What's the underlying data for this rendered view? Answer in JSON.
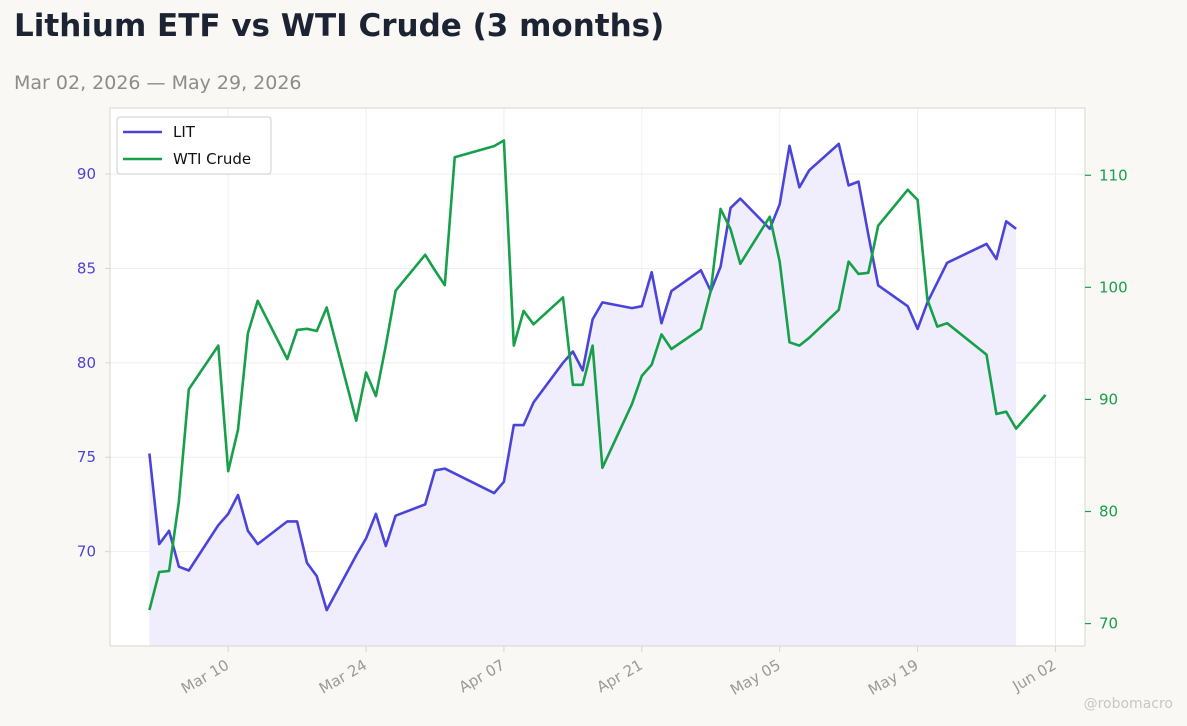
{
  "header": {
    "title": "Lithium ETF vs WTI Crude (3 months)",
    "subtitle": "Mar 02, 2026 — May 29, 2026"
  },
  "watermark": "@robomacro",
  "colors": {
    "lit": "#4b44d8",
    "lit_fill": "#f0eefc",
    "wti": "#17a04a",
    "axis": "#d8d6d0",
    "grid": "#eeeeee",
    "tick_label": "#9a9a9a"
  },
  "chart_data": {
    "type": "line",
    "legend": "top-left",
    "grid": true,
    "x_range": [
      "2026-02-26",
      "2026-06-05"
    ],
    "x_ticks": [
      {
        "date": "2026-03-10",
        "label": "Mar 10"
      },
      {
        "date": "2026-03-24",
        "label": "Mar 24"
      },
      {
        "date": "2026-04-07",
        "label": "Apr 07"
      },
      {
        "date": "2026-04-21",
        "label": "Apr 21"
      },
      {
        "date": "2026-05-05",
        "label": "May 05"
      },
      {
        "date": "2026-05-19",
        "label": "May 19"
      },
      {
        "date": "2026-06-02",
        "label": "Jun 02"
      }
    ],
    "y_left": {
      "range": [
        65,
        93.5
      ],
      "ticks": [
        70,
        75,
        80,
        85,
        90
      ]
    },
    "y_right": {
      "range": [
        68,
        116
      ],
      "ticks": [
        70,
        80,
        90,
        100,
        110
      ]
    },
    "series": [
      {
        "name": "LIT",
        "axis": "left",
        "fill": true,
        "points": [
          [
            "2026-03-02",
            75.2
          ],
          [
            "2026-03-03",
            70.4
          ],
          [
            "2026-03-04",
            71.1
          ],
          [
            "2026-03-05",
            69.2
          ],
          [
            "2026-03-06",
            69.0
          ],
          [
            "2026-03-09",
            71.4
          ],
          [
            "2026-03-10",
            72.0
          ],
          [
            "2026-03-11",
            73.0
          ],
          [
            "2026-03-12",
            71.1
          ],
          [
            "2026-03-13",
            70.4
          ],
          [
            "2026-03-16",
            71.6
          ],
          [
            "2026-03-17",
            71.6
          ],
          [
            "2026-03-18",
            69.4
          ],
          [
            "2026-03-19",
            68.7
          ],
          [
            "2026-03-20",
            66.9
          ],
          [
            "2026-03-23",
            69.8
          ],
          [
            "2026-03-24",
            70.7
          ],
          [
            "2026-03-25",
            72.0
          ],
          [
            "2026-03-26",
            70.3
          ],
          [
            "2026-03-27",
            71.9
          ],
          [
            "2026-03-30",
            72.5
          ],
          [
            "2026-03-31",
            74.3
          ],
          [
            "2026-04-01",
            74.4
          ],
          [
            "2026-04-06",
            73.1
          ],
          [
            "2026-04-07",
            73.7
          ],
          [
            "2026-04-08",
            76.7
          ],
          [
            "2026-04-09",
            76.7
          ],
          [
            "2026-04-10",
            77.9
          ],
          [
            "2026-04-13",
            80.0
          ],
          [
            "2026-04-14",
            80.6
          ],
          [
            "2026-04-15",
            79.6
          ],
          [
            "2026-04-16",
            82.3
          ],
          [
            "2026-04-17",
            83.2
          ],
          [
            "2026-04-20",
            82.9
          ],
          [
            "2026-04-21",
            83.0
          ],
          [
            "2026-04-22",
            84.8
          ],
          [
            "2026-04-23",
            82.1
          ],
          [
            "2026-04-24",
            83.8
          ],
          [
            "2026-04-27",
            84.9
          ],
          [
            "2026-04-28",
            83.8
          ],
          [
            "2026-04-29",
            85.1
          ],
          [
            "2026-04-30",
            88.2
          ],
          [
            "2026-05-01",
            88.7
          ],
          [
            "2026-05-04",
            87.1
          ],
          [
            "2026-05-05",
            88.4
          ],
          [
            "2026-05-06",
            91.5
          ],
          [
            "2026-05-07",
            89.3
          ],
          [
            "2026-05-08",
            90.2
          ],
          [
            "2026-05-11",
            91.6
          ],
          [
            "2026-05-12",
            89.4
          ],
          [
            "2026-05-13",
            89.6
          ],
          [
            "2026-05-14",
            86.8
          ],
          [
            "2026-05-15",
            84.1
          ],
          [
            "2026-05-18",
            83.0
          ],
          [
            "2026-05-19",
            81.8
          ],
          [
            "2026-05-20",
            83.2
          ],
          [
            "2026-05-22",
            85.3
          ],
          [
            "2026-05-26",
            86.3
          ],
          [
            "2026-05-27",
            85.5
          ],
          [
            "2026-05-28",
            87.5
          ],
          [
            "2026-05-29",
            87.1
          ]
        ]
      },
      {
        "name": "WTI Crude",
        "axis": "right",
        "fill": false,
        "points": [
          [
            "2026-03-02",
            71.2
          ],
          [
            "2026-03-03",
            74.6
          ],
          [
            "2026-03-04",
            74.7
          ],
          [
            "2026-03-05",
            80.9
          ],
          [
            "2026-03-06",
            90.9
          ],
          [
            "2026-03-09",
            94.8
          ],
          [
            "2026-03-10",
            83.6
          ],
          [
            "2026-03-11",
            87.3
          ],
          [
            "2026-03-12",
            95.9
          ],
          [
            "2026-03-13",
            98.8
          ],
          [
            "2026-03-16",
            93.6
          ],
          [
            "2026-03-17",
            96.2
          ],
          [
            "2026-03-18",
            96.3
          ],
          [
            "2026-03-19",
            96.1
          ],
          [
            "2026-03-20",
            98.2
          ],
          [
            "2026-03-23",
            88.1
          ],
          [
            "2026-03-24",
            92.4
          ],
          [
            "2026-03-25",
            90.3
          ],
          [
            "2026-03-26",
            94.8
          ],
          [
            "2026-03-27",
            99.7
          ],
          [
            "2026-03-30",
            102.9
          ],
          [
            "2026-03-31",
            101.5
          ],
          [
            "2026-04-01",
            100.2
          ],
          [
            "2026-04-02",
            111.6
          ],
          [
            "2026-04-06",
            112.6
          ],
          [
            "2026-04-07",
            113.1
          ],
          [
            "2026-04-08",
            94.8
          ],
          [
            "2026-04-09",
            97.9
          ],
          [
            "2026-04-10",
            96.7
          ],
          [
            "2026-04-13",
            99.1
          ],
          [
            "2026-04-14",
            91.3
          ],
          [
            "2026-04-15",
            91.3
          ],
          [
            "2026-04-16",
            94.8
          ],
          [
            "2026-04-17",
            83.9
          ],
          [
            "2026-04-20",
            89.6
          ],
          [
            "2026-04-21",
            92.1
          ],
          [
            "2026-04-22",
            93.1
          ],
          [
            "2026-04-23",
            95.8
          ],
          [
            "2026-04-24",
            94.5
          ],
          [
            "2026-04-27",
            96.3
          ],
          [
            "2026-04-28",
            99.7
          ],
          [
            "2026-04-29",
            107.0
          ],
          [
            "2026-04-30",
            105.2
          ],
          [
            "2026-05-01",
            102.1
          ],
          [
            "2026-05-04",
            106.3
          ],
          [
            "2026-05-05",
            102.3
          ],
          [
            "2026-05-06",
            95.1
          ],
          [
            "2026-05-07",
            94.8
          ],
          [
            "2026-05-08",
            95.5
          ],
          [
            "2026-05-11",
            98.0
          ],
          [
            "2026-05-12",
            102.3
          ],
          [
            "2026-05-13",
            101.2
          ],
          [
            "2026-05-14",
            101.3
          ],
          [
            "2026-05-15",
            105.5
          ],
          [
            "2026-05-18",
            108.7
          ],
          [
            "2026-05-19",
            107.8
          ],
          [
            "2026-05-20",
            98.9
          ],
          [
            "2026-05-21",
            96.5
          ],
          [
            "2026-05-22",
            96.8
          ],
          [
            "2026-05-26",
            94.0
          ],
          [
            "2026-05-27",
            88.7
          ],
          [
            "2026-05-28",
            88.9
          ],
          [
            "2026-05-29",
            87.4
          ],
          [
            "2026-06-01",
            90.4
          ]
        ]
      }
    ]
  }
}
